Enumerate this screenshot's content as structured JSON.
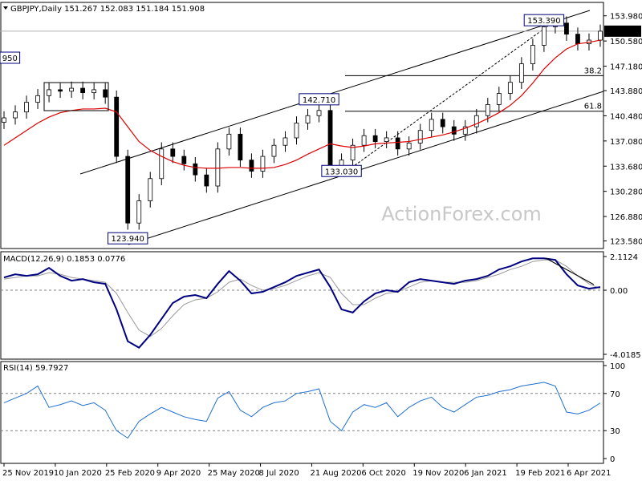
{
  "chart_data": [
    {
      "type": "candlestick",
      "symbol_label": "GBPJPY,Daily  151.267 152.083 151.184 151.908",
      "symbol": "GBPJPY",
      "timeframe": "Daily",
      "ohlc_last": {
        "open": 151.267,
        "high": 152.083,
        "low": 151.184,
        "close": 151.908
      },
      "last_price_label": "151.908",
      "ylim": [
        123.1,
        154.6
      ],
      "y_ticks": [
        "153.980",
        "150.580",
        "147.180",
        "143.880",
        "140.480",
        "137.080",
        "133.680",
        "130.280",
        "126.880",
        "123.580"
      ],
      "x_ticks": [
        "25 Nov 2019",
        "10 Jan 2020",
        "25 Feb 2020",
        "9 Apr 2020",
        "25 May 2020",
        "8 Jul 2020",
        "21 Aug 2020",
        "6 Oct 2020",
        "19 Nov 2020",
        "6 Jan 2021",
        "19 Feb 2021",
        "6 Apr 2021"
      ],
      "price_labels": [
        {
          "text": "950",
          "date_index": 0,
          "price": 148.0
        },
        {
          "text": "123.940",
          "date_index": 11,
          "price": 123.94
        },
        {
          "text": "142.710",
          "date_index": 28,
          "price": 142.71
        },
        {
          "text": "133.030",
          "date_index": 30,
          "price": 133.03
        },
        {
          "text": "153.390",
          "date_index": 48,
          "price": 153.39
        }
      ],
      "fib_levels": [
        {
          "label": "38.2",
          "price": 145.9
        },
        {
          "label": "61.8",
          "price": 141.1
        }
      ],
      "watermark": "ActionForex.com",
      "colors": {
        "candle": "#000000",
        "ma": "#dd0000",
        "line": "#000000",
        "box": "#00007a"
      },
      "close_series": [
        140.2,
        141.0,
        142.3,
        143.2,
        144.0,
        143.8,
        144.2,
        143.6,
        144.0,
        143.0,
        135.0,
        126.0,
        129.0,
        132.0,
        136.0,
        135.0,
        134.0,
        132.5,
        131.0,
        136.0,
        138.0,
        134.5,
        133.0,
        135.0,
        136.5,
        137.5,
        139.5,
        140.5,
        141.2,
        133.5,
        134.5,
        136.5,
        137.8,
        137.0,
        137.5,
        136.0,
        136.8,
        138.5,
        140.0,
        139.0,
        138.0,
        139.0,
        140.5,
        142.0,
        143.5,
        145.0,
        147.5,
        150.0,
        152.5,
        153.0,
        151.5,
        150.2,
        150.7,
        151.9
      ],
      "ma_series": [
        136.5,
        137.5,
        138.5,
        139.5,
        140.3,
        140.9,
        141.2,
        141.4,
        141.4,
        141.5,
        141.0,
        139.0,
        137.0,
        135.8,
        135.0,
        134.3,
        133.8,
        133.5,
        133.4,
        133.4,
        133.5,
        133.5,
        133.4,
        133.4,
        133.5,
        133.9,
        134.5,
        135.3,
        136.0,
        136.7,
        136.4,
        136.2,
        136.4,
        136.7,
        136.8,
        136.9,
        137.0,
        137.3,
        137.6,
        137.9,
        138.3,
        138.8,
        139.4,
        140.1,
        140.9,
        141.9,
        143.2,
        144.9,
        146.8,
        148.3,
        149.5,
        150.2,
        150.4,
        150.7
      ]
    },
    {
      "type": "line",
      "label": "MACD(12,26,9) 0.1853 0.0776",
      "y_ticks": [
        "2.1124",
        "0.00",
        "-4.0185"
      ],
      "ylim": [
        -4.0185,
        2.1124
      ],
      "series": [
        {
          "values": [
            0.8,
            1.0,
            0.9,
            1.0,
            1.4,
            0.9,
            0.6,
            0.7,
            0.5,
            0.4,
            -1.2,
            -3.2,
            -3.6,
            -2.8,
            -1.8,
            -0.8,
            -0.4,
            -0.3,
            -0.5,
            0.4,
            1.2,
            0.6,
            -0.2,
            -0.1,
            0.2,
            0.5,
            0.9,
            1.1,
            1.3,
            0.2,
            -1.2,
            -1.4,
            -0.7,
            -0.2,
            0.0,
            -0.1,
            0.5,
            0.7,
            0.6,
            0.5,
            0.4,
            0.6,
            0.7,
            0.9,
            1.3,
            1.5,
            1.8,
            2.0,
            2.0,
            1.9,
            1.0,
            0.3,
            0.1,
            0.2
          ]
        },
        {
          "values": [
            0.7,
            0.8,
            0.9,
            0.9,
            1.1,
            1.0,
            0.8,
            0.7,
            0.6,
            0.5,
            -0.2,
            -1.4,
            -2.5,
            -2.9,
            -2.4,
            -1.6,
            -0.9,
            -0.6,
            -0.5,
            -0.1,
            0.5,
            0.7,
            0.3,
            0.0,
            0.1,
            0.3,
            0.6,
            0.9,
            1.1,
            0.8,
            -0.2,
            -0.9,
            -0.9,
            -0.5,
            -0.2,
            -0.1,
            0.2,
            0.5,
            0.6,
            0.5,
            0.5,
            0.5,
            0.6,
            0.8,
            1.0,
            1.3,
            1.5,
            1.8,
            1.9,
            1.9,
            1.5,
            0.9,
            0.4,
            0.1
          ]
        }
      ]
    },
    {
      "type": "line",
      "label": "RSI(14) 59.7927",
      "y_ticks": [
        "100",
        "70",
        "30",
        "0"
      ],
      "ylim": [
        0,
        100
      ],
      "series": [
        {
          "values": [
            60,
            65,
            70,
            78,
            55,
            58,
            62,
            57,
            60,
            52,
            30,
            22,
            40,
            48,
            55,
            50,
            45,
            42,
            40,
            65,
            72,
            52,
            45,
            55,
            60,
            62,
            70,
            72,
            75,
            40,
            30,
            50,
            58,
            55,
            60,
            45,
            55,
            62,
            66,
            55,
            50,
            58,
            66,
            68,
            72,
            74,
            78,
            80,
            82,
            78,
            50,
            48,
            52,
            59.8
          ]
        }
      ]
    }
  ],
  "x_axis": {
    "labels": [
      "25 Nov 2019",
      "10 Jan 2020",
      "25 Feb 2020",
      "9 Apr 2020",
      "25 May 2020",
      "8 Jul 2020",
      "21 Aug 2020",
      "6 Oct 2020",
      "19 Nov 2020",
      "6 Jan 2021",
      "19 Feb 2021",
      "6 Apr 2021"
    ]
  }
}
